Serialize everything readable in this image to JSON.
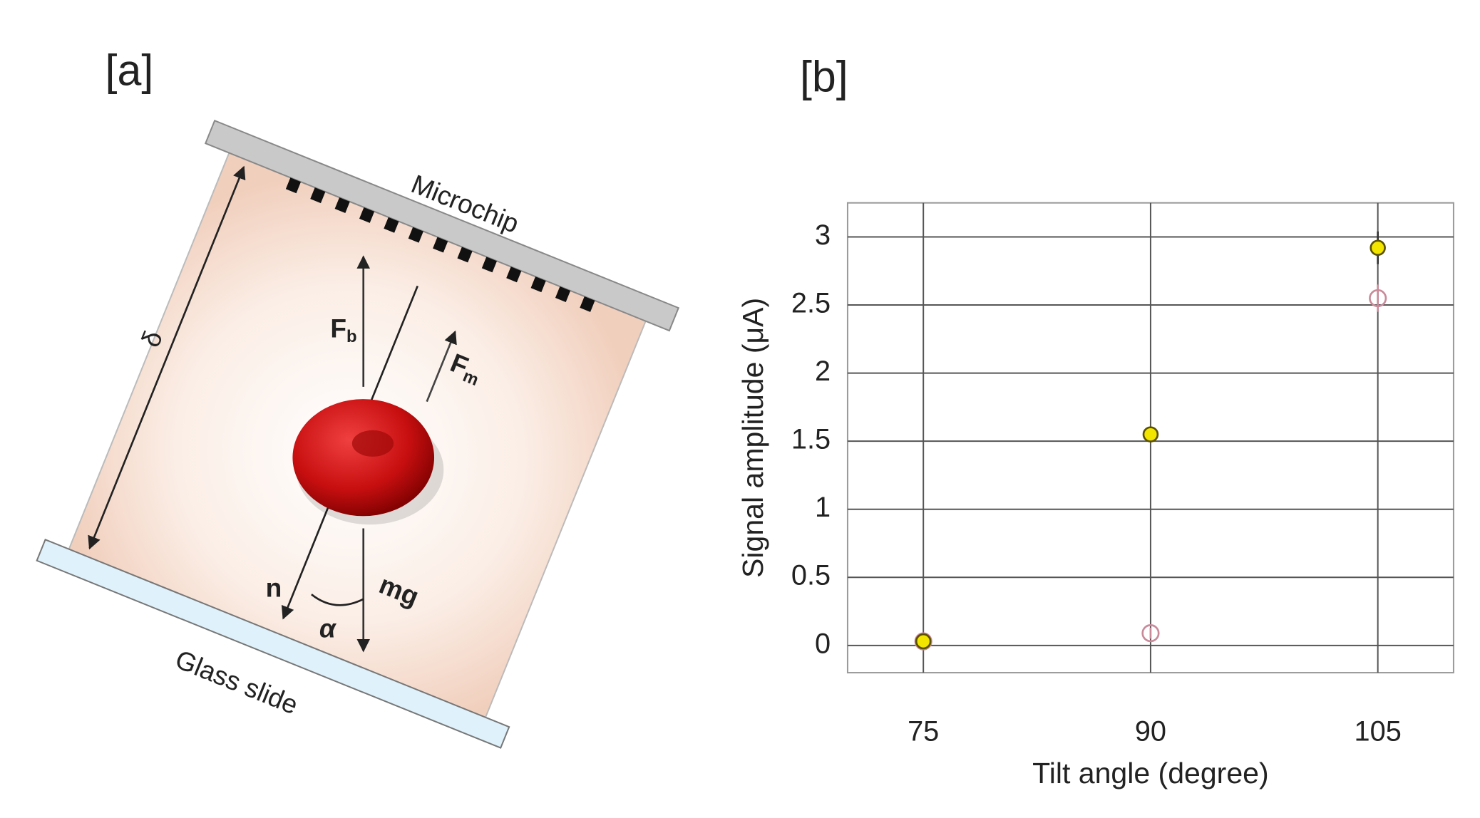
{
  "diagram": {
    "panel_label": "[a]",
    "chip_label": "Microchip",
    "slide_label": "Glass slide",
    "gap_label": "δ",
    "fb": {
      "main": "F",
      "sub": "b"
    },
    "fm": {
      "main": "F",
      "sub": "m"
    },
    "normal_label": "n",
    "weight_label": "mg",
    "angle_label": "α"
  },
  "chart_data": {
    "type": "scatter",
    "panel_label": "[b]",
    "x_label": "Tilt angle (degree)",
    "y_label": "Signal amplitude (μA)",
    "xlim": [
      70,
      110
    ],
    "xticks": [
      75,
      90,
      105
    ],
    "ylim": [
      -0.2,
      3.25
    ],
    "yticks": [
      0,
      0.5,
      1,
      1.5,
      2,
      2.5,
      3
    ],
    "grid": true,
    "series": [
      {
        "color": "#c98a9a",
        "marker": "open",
        "x": [
          75,
          90,
          105
        ],
        "values": [
          0.03,
          0.09,
          2.55
        ],
        "errors": [
          0.03,
          0.04,
          0.1
        ]
      },
      {
        "color": "#f2e600",
        "marker": "filled",
        "x": [
          75,
          90,
          105
        ],
        "values": [
          0.03,
          1.55,
          2.92
        ],
        "errors": [
          0.02,
          0.03,
          0.12
        ]
      }
    ]
  }
}
